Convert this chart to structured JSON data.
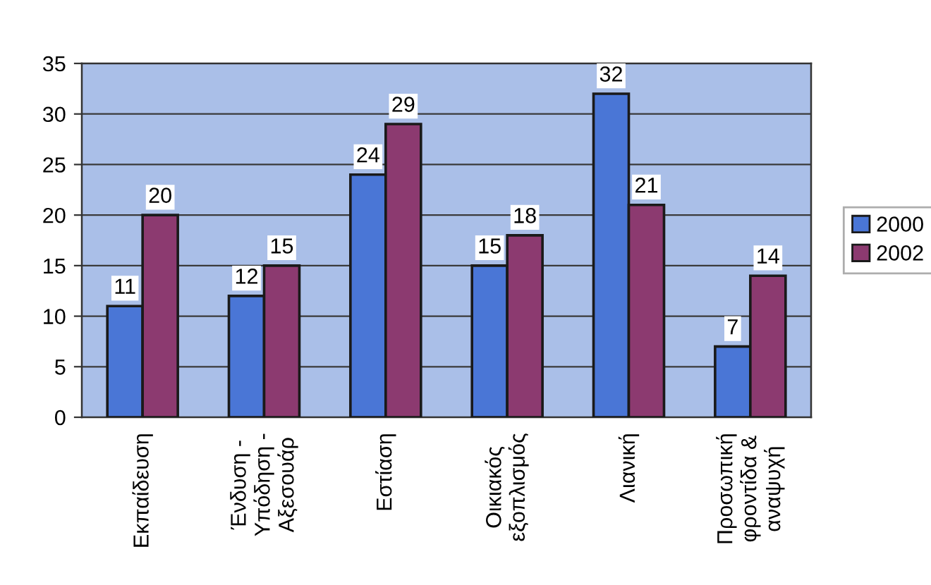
{
  "chart_data": {
    "type": "bar",
    "categories": [
      "Εκπαίδευση",
      "Ένδυση -\nΥπόδηση -\nΑξεσουάρ",
      "Εστίαση",
      "Οικιακός\nεξοπλισμός",
      "Λιανική",
      "Προσωπική\nφροντίδα &\nαναψυχή"
    ],
    "series": [
      {
        "name": "2000",
        "color": "#4a76d6",
        "values": [
          11,
          12,
          24,
          15,
          32,
          7
        ]
      },
      {
        "name": "2002",
        "color": "#8c3a70",
        "values": [
          20,
          15,
          29,
          18,
          21,
          14
        ]
      }
    ],
    "ylim": [
      0,
      35
    ],
    "yticks": [
      0,
      5,
      10,
      15,
      20,
      25,
      30,
      35
    ],
    "grid": "y",
    "legend": "right",
    "data_labels": true
  }
}
